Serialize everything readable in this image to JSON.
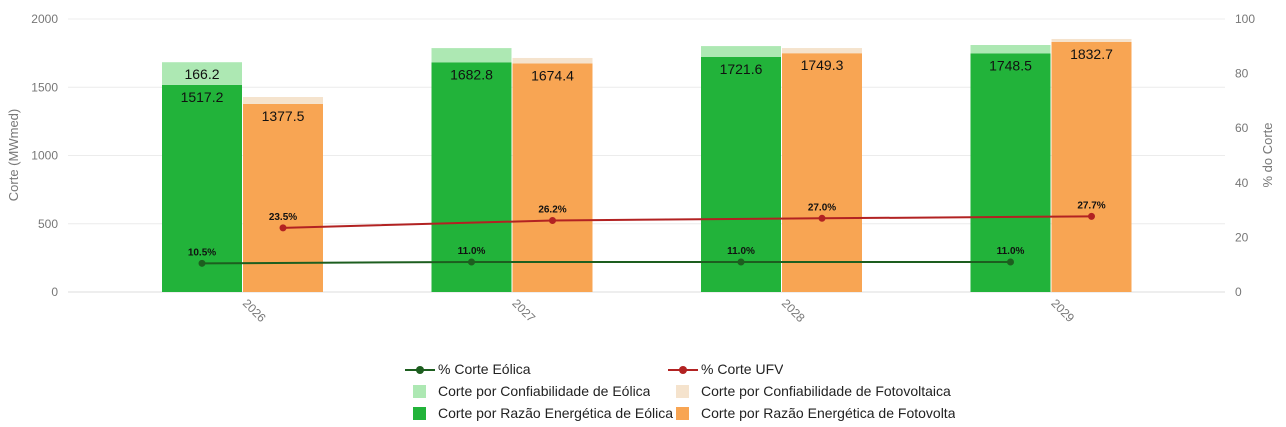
{
  "chart_data": {
    "type": "bar",
    "categories": [
      "2026",
      "2027",
      "2028",
      "2029"
    ],
    "ylabel": "Corte (MWmed)",
    "y2label": "% do Corte",
    "ylim": [
      0,
      2000
    ],
    "y2lim": [
      0,
      100
    ],
    "yticks": [
      "0",
      "500",
      "1000",
      "1500",
      "2000"
    ],
    "y2ticks": [
      "0",
      "20",
      "40",
      "60",
      "80",
      "100"
    ],
    "grid": true,
    "legend_position": "bottom",
    "series": [
      {
        "name": "Corte por Razão Energética de Eólica",
        "type": "bar",
        "stack": "eolica",
        "color": "#22b33a",
        "values": [
          1517.2,
          1682.8,
          1721.6,
          1748.5
        ],
        "labels": [
          "1517.2",
          "1682.8",
          "1721.6",
          "1748.5"
        ]
      },
      {
        "name": "Corte por Confiabilidade de Eólica",
        "type": "bar",
        "stack": "eolica",
        "color": "#ade8b3",
        "values": [
          166.2,
          104,
          80,
          61
        ],
        "labels": [
          "166.2",
          "",
          "",
          ""
        ]
      },
      {
        "name": "Corte por Razão Energética de Fotovolta",
        "type": "bar",
        "stack": "ufv",
        "color": "#f8a553",
        "values": [
          1377.5,
          1674.4,
          1749.3,
          1832.7
        ],
        "labels": [
          "1377.5",
          "1674.4",
          "1749.3",
          "1832.7"
        ]
      },
      {
        "name": "Corte por Confiabilidade de Fotovoltaica",
        "type": "bar",
        "stack": "ufv",
        "color": "#f5e3cd",
        "values": [
          51,
          40,
          38,
          21
        ],
        "labels": [
          "",
          "",
          "",
          ""
        ]
      },
      {
        "name": "% Corte Eólica",
        "type": "line",
        "axis": "right",
        "color": "#1d5e1f",
        "values": [
          10.5,
          11.0,
          11.0,
          11.0
        ],
        "labels": [
          "10.5%",
          "11.0%",
          "11.0%",
          "11.0%"
        ]
      },
      {
        "name": "% Corte UFV",
        "type": "line",
        "axis": "right",
        "color": "#b22222",
        "values": [
          23.5,
          26.2,
          27.0,
          27.7
        ],
        "labels": [
          "23.5%",
          "26.2%",
          "27.0%",
          "27.7%"
        ]
      }
    ]
  },
  "legend": {
    "items": [
      "% Corte Eólica",
      "% Corte UFV",
      "Corte por Confiabilidade de Eólica",
      "Corte por Confiabilidade de Fotovoltaica",
      "Corte por Razão Energética de Eólica",
      "Corte por Razão Energética de Fotovolta"
    ]
  }
}
